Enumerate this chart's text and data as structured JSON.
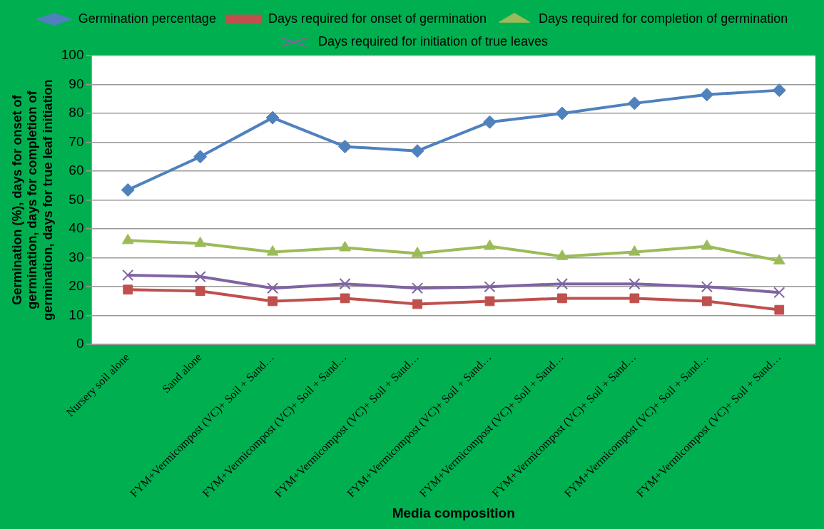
{
  "chart_data": {
    "type": "line",
    "xlabel": "Media composition",
    "ylabel": "Germination (%), days for onset of germination, days for completion of germination, days for true leaf initiation",
    "categories": [
      "Nursery soil alone",
      "Sand alone",
      "FYM+Vermicompost (VC)+ Soil + Sand…",
      "FYM+Vermicompost (VC)+ Soil + Sand…",
      "FYM+Vermicompost (VC)+ Soil + Sand…",
      "FYM+Vermicompost (VC)+ Soil + Sand…",
      "FYM+Vermicompost (VC)+ Soil + Sand…",
      "FYM+Vermicompost (VC)+ Soil + Sand…",
      "FYM+Vermicompost (VC)+ Soil + Sand…",
      "FYM+Vermicompost (VC)+ Soil + Sand…"
    ],
    "series": [
      {
        "name": "Germination percentage",
        "color": "#4f81bd",
        "marker": "diamond",
        "values": [
          53.5,
          65,
          78.5,
          68.5,
          67,
          77,
          80,
          83.5,
          86.5,
          88
        ]
      },
      {
        "name": "Days required for onset of germination",
        "color": "#c0504d",
        "marker": "square",
        "values": [
          19,
          18.5,
          15,
          16,
          14,
          15,
          16,
          16,
          15,
          12
        ]
      },
      {
        "name": "Days required for completion of germination",
        "color": "#9bbb59",
        "marker": "triangle",
        "values": [
          36,
          35,
          32,
          33.5,
          31.5,
          34,
          30.5,
          32,
          34,
          29
        ]
      },
      {
        "name": "Days required for initiation of true leaves",
        "color": "#8064a2",
        "marker": "cross",
        "values": [
          24,
          23.5,
          19.5,
          21,
          19.5,
          20,
          21,
          21,
          20,
          18
        ]
      }
    ],
    "ylim": [
      0,
      100
    ],
    "yticks": [
      0,
      10,
      20,
      30,
      40,
      50,
      60,
      70,
      80,
      90,
      100
    ],
    "grid": "y",
    "legend": "top",
    "line_style": "solid"
  }
}
